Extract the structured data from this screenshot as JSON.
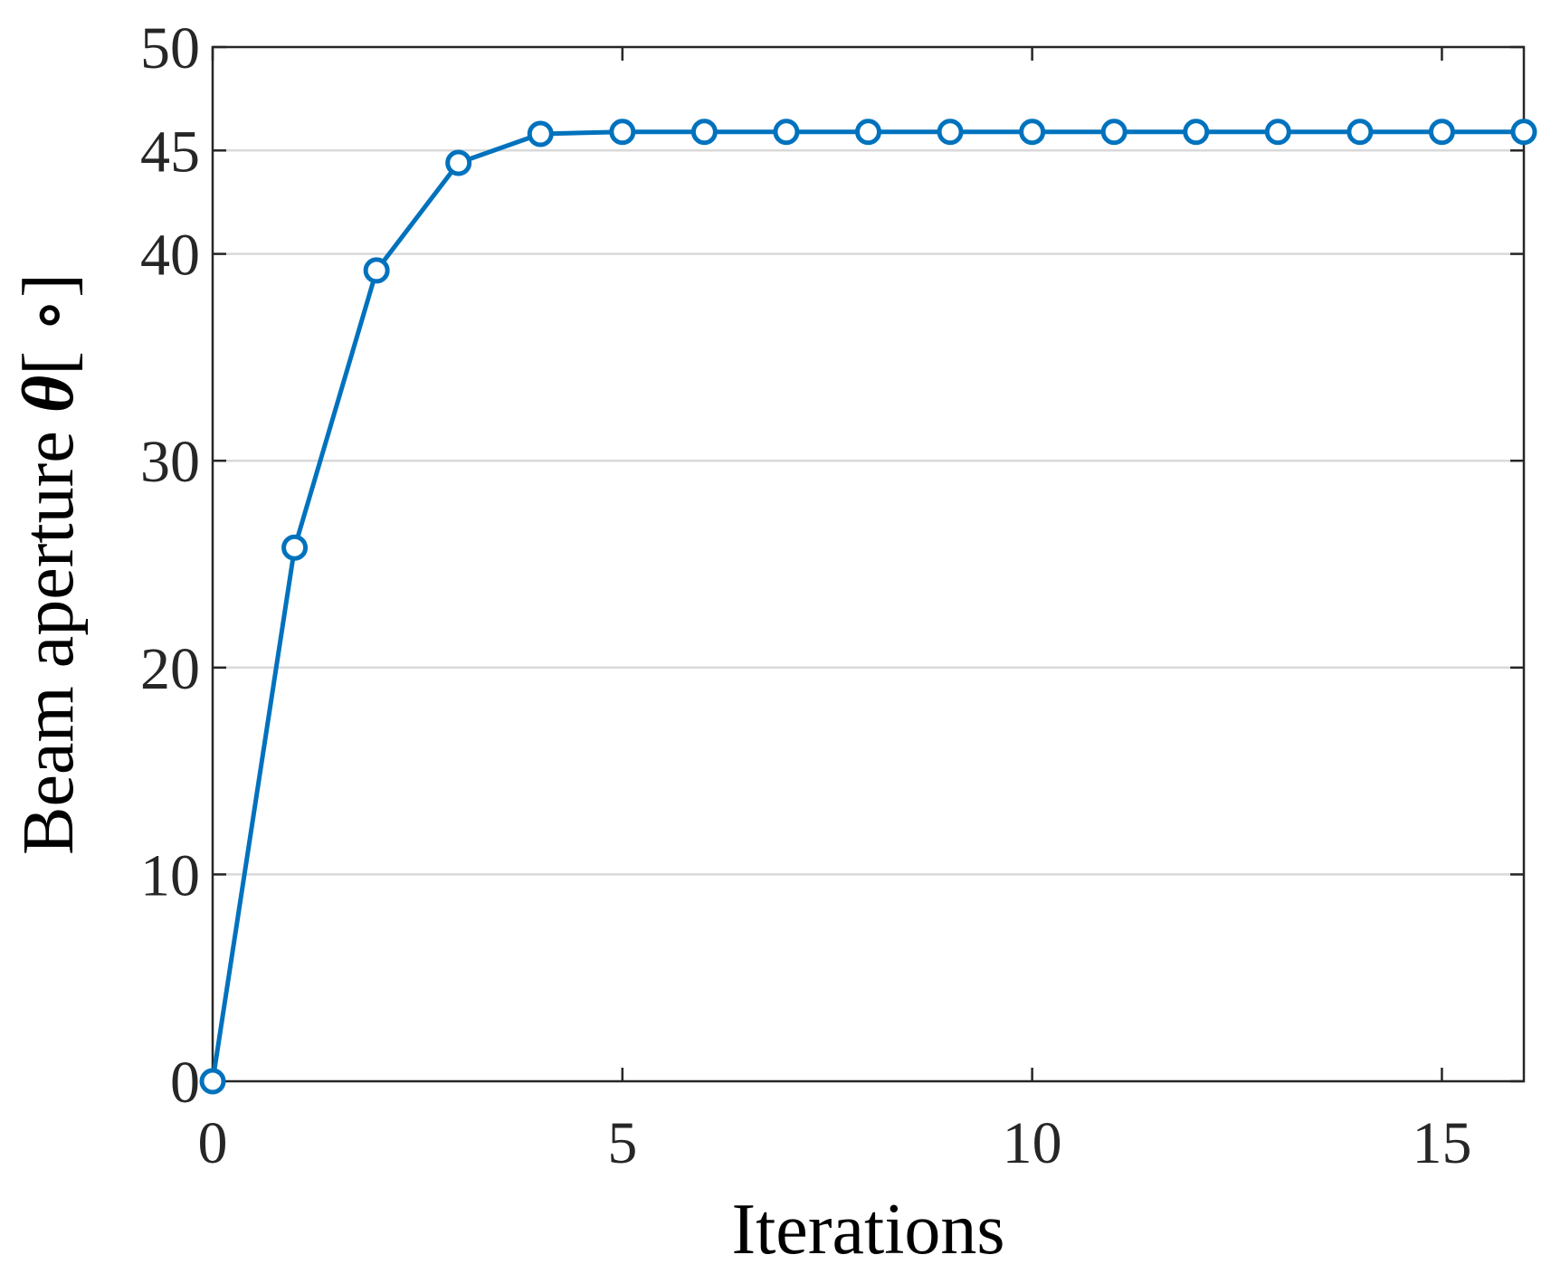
{
  "chart_data": {
    "type": "line",
    "title": "",
    "xlabel": "Iterations",
    "ylabel": "Beam aperture θ[ ∘]",
    "ylabel_parts": {
      "text": "Beam aperture ",
      "symbol": "θ",
      "unit": "[ ∘]"
    },
    "xlim": [
      0,
      16
    ],
    "ylim": [
      0,
      50
    ],
    "xticks": [
      0,
      5,
      10,
      15
    ],
    "yticks": [
      0,
      10,
      20,
      30,
      40,
      45,
      50
    ],
    "grid": "horizontal",
    "legend": "none",
    "series": [
      {
        "color": "#0072BD",
        "marker": "circle",
        "x": [
          0,
          1,
          2,
          3,
          4,
          5,
          6,
          7,
          8,
          9,
          10,
          11,
          12,
          13,
          14,
          15,
          16
        ],
        "y": [
          0,
          25.8,
          39.2,
          44.4,
          45.8,
          45.9,
          45.9,
          45.9,
          45.9,
          45.9,
          45.9,
          45.9,
          45.9,
          45.9,
          45.9,
          45.9,
          45.9
        ]
      }
    ]
  }
}
